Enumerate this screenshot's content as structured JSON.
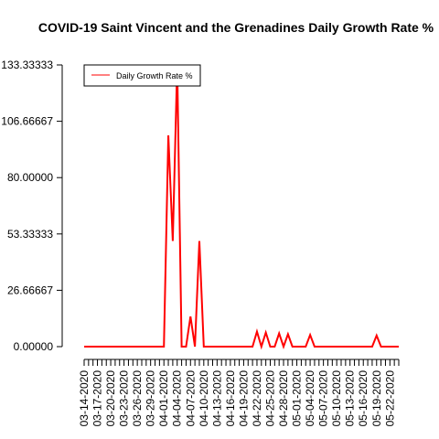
{
  "chart_data": {
    "type": "line",
    "title": "COVID-19 Saint Vincent and the Grenadines Daily Growth Rate %",
    "categories": [
      "03-14-2020",
      null,
      null,
      "03-17-2020",
      null,
      null,
      "03-20-2020",
      null,
      null,
      "03-23-2020",
      null,
      null,
      "03-26-2020",
      null,
      null,
      "03-29-2020",
      null,
      null,
      "04-01-2020",
      null,
      null,
      "04-04-2020",
      null,
      null,
      "04-07-2020",
      null,
      null,
      "04-10-2020",
      null,
      null,
      "04-13-2020",
      null,
      null,
      "04-16-2020",
      null,
      null,
      "04-19-2020",
      null,
      null,
      "04-22-2020",
      null,
      null,
      "04-25-2020",
      null,
      null,
      "04-28-2020",
      null,
      null,
      "05-01-2020",
      null,
      null,
      "05-04-2020",
      null,
      null,
      "05-07-2020",
      null,
      null,
      "05-10-2020",
      null,
      null,
      "05-13-2020",
      null,
      null,
      "05-16-2020",
      null,
      null,
      "05-19-2020",
      null,
      null,
      "05-22-2020",
      null,
      null
    ],
    "series": [
      {
        "name": "Daily Growth Rate %",
        "color": "#ff0000",
        "values": [
          0,
          0,
          0,
          0,
          0,
          0,
          0,
          0,
          0,
          0,
          0,
          0,
          0,
          0,
          0,
          0,
          0,
          0,
          0,
          100,
          50,
          133.33333,
          0,
          0,
          14.28571,
          0,
          50,
          0,
          0,
          0,
          0,
          0,
          0,
          0,
          0,
          0,
          0,
          0,
          0,
          7.14286,
          0,
          6.66667,
          0,
          0,
          6.25,
          0,
          5.88235,
          0,
          0,
          0,
          0,
          5.55556,
          0,
          0,
          0,
          0,
          0,
          0,
          0,
          0,
          0,
          0,
          0,
          0,
          0,
          0,
          5.26316,
          0,
          0,
          0,
          0,
          0
        ]
      }
    ],
    "ylim": [
      0,
      133.33333
    ],
    "yticks": [
      {
        "value": 0,
        "label": "0.00000"
      },
      {
        "value": 26.66667,
        "label": "26.66667"
      },
      {
        "value": 53.33333,
        "label": "53.33333"
      },
      {
        "value": 80,
        "label": "80.00000"
      },
      {
        "value": 106.66667,
        "label": "106.66667"
      },
      {
        "value": 133.33333,
        "label": "133.33333"
      }
    ],
    "legend": "top-left"
  }
}
